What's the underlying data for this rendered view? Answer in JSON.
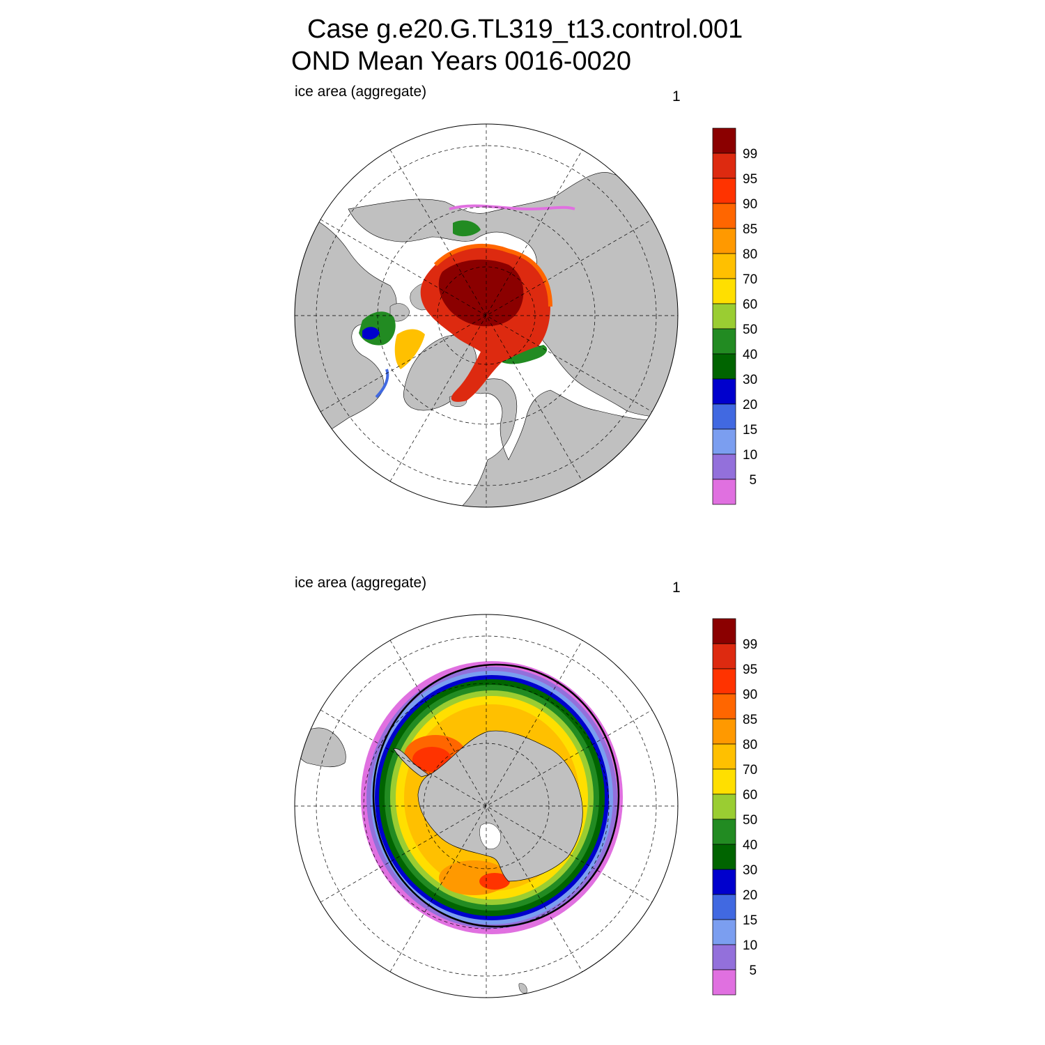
{
  "header": {
    "line1": "Case g.e20.G.TL319_t13.control.001",
    "line2": "OND Mean   Years 0016-0020"
  },
  "panels": [
    {
      "hemisphere": "north",
      "left_label": "ice area  (aggregate)",
      "right_label": "1"
    },
    {
      "hemisphere": "south",
      "left_label": "ice area  (aggregate)",
      "right_label": "1"
    }
  ],
  "colorbar": {
    "levels": [
      "5",
      "10",
      "15",
      "20",
      "30",
      "40",
      "50",
      "60",
      "70",
      "80",
      "85",
      "90",
      "95",
      "99"
    ],
    "colors": [
      "#e070e0",
      "#9370db",
      "#7b9ef0",
      "#4169e1",
      "#0000cd",
      "#006400",
      "#228b22",
      "#9acd32",
      "#ffdf00",
      "#ffc000",
      "#ff9900",
      "#ff6600",
      "#ff3300",
      "#dd2a10",
      "#8b0000"
    ]
  },
  "map_style": {
    "land_color": "#c0c0c0",
    "ocean_color": "#ffffff",
    "grid_style": "dashed"
  }
}
